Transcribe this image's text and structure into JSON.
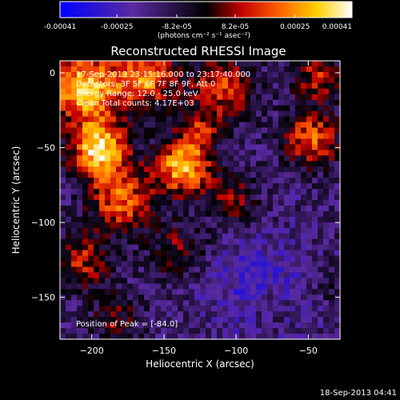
{
  "colorbar": {
    "ticks": [
      {
        "value": -0.00041,
        "label": "-0.00041"
      },
      {
        "value": -0.00025,
        "label": "-0.00025"
      },
      {
        "value": -8.2e-05,
        "label": "-8.2e-05"
      },
      {
        "value": 8.2e-05,
        "label": "8.2e-05"
      },
      {
        "value": 0.00025,
        "label": "0.00025"
      },
      {
        "value": 0.00041,
        "label": "0.00041"
      }
    ],
    "units_label": "(photons cm⁻² s⁻¹ asec⁻²)",
    "range": [
      -0.00041,
      0.00041
    ]
  },
  "annotations": {
    "time_range": "17-Sep-2013 23:15:16.000 to 23:17:40.000",
    "detectors": "Detectors: 3F 5F 6F 7F 8F 9F, Att 0",
    "energy_range": "Energy Range: 12.0 - 25.0 keV",
    "clean_counts": "Clean    Total counts: 4.17E+03",
    "peak_position": "Position of Peak = [-84.0]"
  },
  "footer": {
    "timestamp": "18-Sep-2013 04:41"
  },
  "chart_data": {
    "type": "heatmap",
    "title": "Reconstructed RHESSI Image",
    "xlabel": "Heliocentric X (arcsec)",
    "ylabel": "Heliocentric Y (arcsec)",
    "xlim": [
      -222,
      -28
    ],
    "ylim": [
      -178,
      8
    ],
    "xticks": [
      {
        "value": -200,
        "label": "−200"
      },
      {
        "value": -150,
        "label": "−150"
      },
      {
        "value": -100,
        "label": "−100"
      },
      {
        "value": -50,
        "label": "−50"
      }
    ],
    "yticks": [
      {
        "value": 0,
        "label": "0"
      },
      {
        "value": -50,
        "label": "−50"
      },
      {
        "value": -100,
        "label": "−100"
      },
      {
        "value": -150,
        "label": "−150"
      }
    ],
    "colorscale": [
      "#0000ff",
      "#5a2aa0",
      "#000000",
      "#c00000",
      "#ff6000",
      "#ffd000",
      "#ffffff"
    ],
    "grid": false
  }
}
